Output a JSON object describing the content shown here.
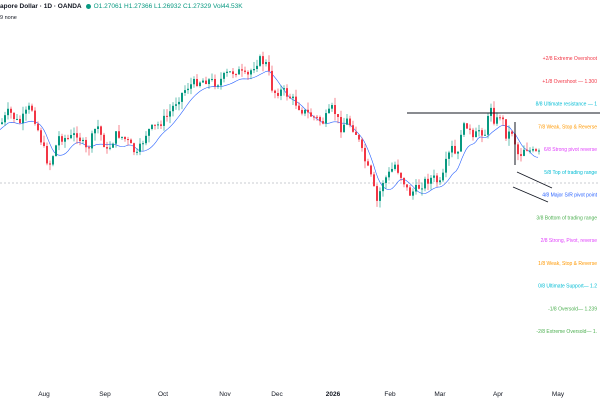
{
  "header": {
    "title": "apore Dollar · 1D · OANDA",
    "ohlc": {
      "open": "O1.27061",
      "high": "H1.27366",
      "low": "L1.26932",
      "close": "C1.27329",
      "volume": "Vol44.53K"
    },
    "indicator": "9 none"
  },
  "colors": {
    "up": "#089981",
    "down": "#f23645",
    "ma": "#2962ff",
    "line": "#131722"
  },
  "chart_data": {
    "type": "candlestick",
    "x_axis_labels": [
      "Aug",
      "Sep",
      "Oct",
      "Nov",
      "Dec",
      "2026",
      "Feb",
      "Mar",
      "Apr",
      "May"
    ],
    "murrey_levels": [
      {
        "label": "+2/8 Extreme Overshoot",
        "color": "#f23645"
      },
      {
        "label": "+1/8 Overshoot — 1.300",
        "color": "#f23645"
      },
      {
        "label": "8/8 Ultimate resistance — 1",
        "color": "#00bcd4"
      },
      {
        "label": "7/8 Weak, Stop & Reverse",
        "color": "#ff9800"
      },
      {
        "label": "6/8 Strong pivot reverse",
        "color": "#e040fb"
      },
      {
        "label": "5/8 Top of trading range",
        "color": "#00bcd4"
      },
      {
        "label": "4/8 Major S/R pivot point",
        "color": "#2962ff"
      },
      {
        "label": "3/8 Bottom of trading range",
        "color": "#4caf50"
      },
      {
        "label": "2/8 Strong, Pivot, reverse",
        "color": "#e040fb"
      },
      {
        "label": "1/8 Weak, Stop & Reverse",
        "color": "#ff9800"
      },
      {
        "label": "0/8 Ultimate Support— 1.2",
        "color": "#00bcd4"
      },
      {
        "label": "-1/8 Oversold— 1.239",
        "color": "#4caf50"
      },
      {
        "label": "-2/8 Extreme Oversold— 1.",
        "color": "#4caf50"
      }
    ],
    "trend_path": [
      [
        0,
        0.4
      ],
      [
        8,
        0.33
      ],
      [
        18,
        0.4
      ],
      [
        30,
        0.3
      ],
      [
        38,
        0.45
      ],
      [
        48,
        0.63
      ],
      [
        58,
        0.47
      ],
      [
        68,
        0.48
      ],
      [
        76,
        0.45
      ],
      [
        86,
        0.55
      ],
      [
        96,
        0.4
      ],
      [
        106,
        0.55
      ],
      [
        116,
        0.45
      ],
      [
        126,
        0.49
      ],
      [
        136,
        0.57
      ],
      [
        146,
        0.44
      ],
      [
        156,
        0.41
      ],
      [
        166,
        0.36
      ],
      [
        176,
        0.27
      ],
      [
        186,
        0.2
      ],
      [
        196,
        0.17
      ],
      [
        206,
        0.16
      ],
      [
        216,
        0.18
      ],
      [
        226,
        0.13
      ],
      [
        236,
        0.11
      ],
      [
        246,
        0.15
      ],
      [
        252,
        0.09
      ],
      [
        258,
        0.05
      ],
      [
        266,
        0.08
      ],
      [
        272,
        0.23
      ],
      [
        282,
        0.22
      ],
      [
        292,
        0.27
      ],
      [
        302,
        0.33
      ],
      [
        312,
        0.36
      ],
      [
        322,
        0.39
      ],
      [
        332,
        0.31
      ],
      [
        340,
        0.42
      ],
      [
        346,
        0.38
      ],
      [
        352,
        0.42
      ],
      [
        356,
        0.46
      ],
      [
        362,
        0.57
      ],
      [
        370,
        0.69
      ],
      [
        376,
        0.82
      ],
      [
        382,
        0.71
      ],
      [
        388,
        0.67
      ],
      [
        394,
        0.62
      ],
      [
        402,
        0.7
      ],
      [
        408,
        0.78
      ],
      [
        416,
        0.75
      ],
      [
        424,
        0.71
      ],
      [
        432,
        0.69
      ],
      [
        440,
        0.73
      ],
      [
        446,
        0.59
      ],
      [
        452,
        0.52
      ],
      [
        456,
        0.61
      ],
      [
        460,
        0.44
      ],
      [
        466,
        0.4
      ],
      [
        472,
        0.49
      ],
      [
        478,
        0.43
      ],
      [
        484,
        0.45
      ],
      [
        490,
        0.3
      ],
      [
        494,
        0.4
      ],
      [
        500,
        0.34
      ],
      [
        506,
        0.48
      ],
      [
        510,
        0.42
      ],
      [
        514,
        0.5
      ],
      [
        518,
        0.58
      ],
      [
        524,
        0.52
      ],
      [
        530,
        0.55
      ],
      [
        536,
        0.56
      ]
    ]
  }
}
